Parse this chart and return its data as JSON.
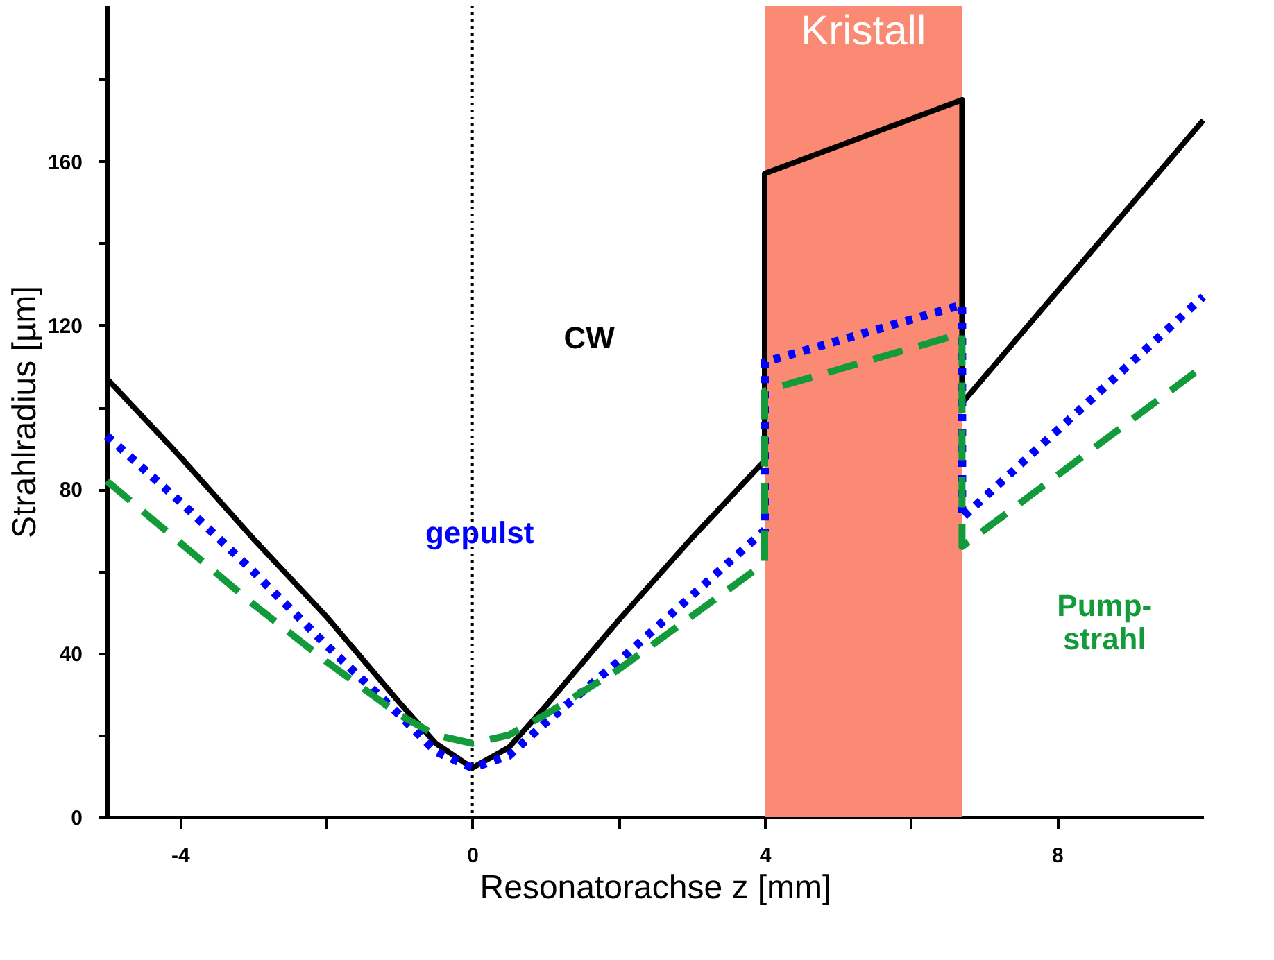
{
  "chart_data": {
    "type": "line",
    "xlabel": "Resonatorachse z [mm]",
    "ylabel": "Strahlradius [µm]",
    "xlim": [
      -5,
      10
    ],
    "xticks": [
      -4,
      {
        "value": -2,
        "label": null
      },
      0,
      {
        "value": 2,
        "label": null
      },
      4,
      {
        "value": 6,
        "label": null
      },
      8
    ],
    "ylim": [
      0,
      198
    ],
    "yticks": [
      0,
      {
        "value": 20,
        "label": null
      },
      40,
      {
        "value": 60,
        "label": null
      },
      80,
      {
        "value": 100,
        "label": null
      },
      120,
      {
        "value": 140,
        "label": null
      },
      160,
      {
        "value": 180,
        "label": null
      }
    ],
    "grid": false,
    "marker": "none",
    "series": [
      {
        "color": "#000000",
        "line_style": "solid",
        "x": [
          -5,
          -4,
          -3,
          -2,
          -1,
          -0.5,
          0,
          0.5,
          1,
          2,
          3,
          4,
          4,
          6.7,
          6.7,
          10
        ],
        "values": [
          107,
          88,
          68,
          49,
          28,
          18,
          12,
          17,
          27,
          48,
          68,
          87,
          157,
          175,
          101,
          170
        ]
      },
      {
        "color": "#0000ff",
        "line_style": "dotted",
        "x": [
          -5,
          -4,
          -3,
          -2,
          -1,
          -0.5,
          0,
          0.5,
          1,
          2,
          3,
          4,
          4,
          6.7,
          6.7,
          10
        ],
        "values": [
          93,
          77,
          60,
          42,
          25,
          16,
          12,
          15,
          23,
          38,
          54,
          70,
          111,
          125,
          73,
          127
        ]
      },
      {
        "color": "#139a3b",
        "line_style": "dashed",
        "x": [
          -5,
          -4,
          -3,
          -2,
          -1,
          -0.5,
          0,
          0.5,
          1,
          2,
          3,
          4,
          4,
          6.7,
          6.7,
          10
        ],
        "values": [
          82,
          67,
          52,
          38,
          25,
          20,
          18,
          20,
          25,
          36,
          49,
          62,
          104,
          118,
          66,
          110
        ]
      }
    ],
    "ref_lines": [
      {
        "axis": "x",
        "value": 0,
        "color": "#000000",
        "line_style": "dotted"
      }
    ],
    "bands": [
      {
        "axis": "x",
        "from": 4,
        "to": 6.7,
        "label": "Kristall",
        "color": "#fa8a74"
      }
    ],
    "annotations": [
      "CW",
      "gepulst",
      "Pump-\nstrahl"
    ]
  }
}
